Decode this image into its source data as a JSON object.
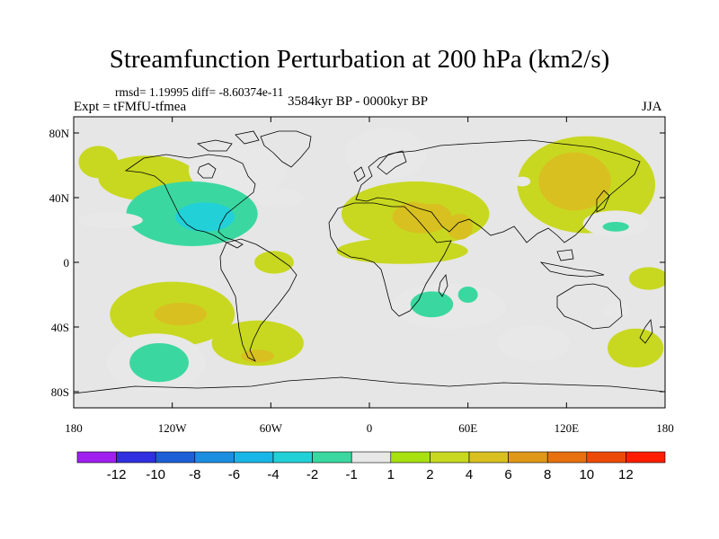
{
  "header": {
    "title": "Streamfunction Perturbation at 200 hPa (km2/s)",
    "stats": "rmsd= 1.19995  diff= -8.60374e-11",
    "experiment": "Expt = tFMfU-tfmea",
    "period": "3584kyr BP - 0000kyr BP",
    "season": "JJA"
  },
  "chart_data": {
    "type": "filled-contour-map",
    "title": "Streamfunction Perturbation at 200 hPa (km2/s)",
    "xlim": [
      -180,
      180
    ],
    "ylim": [
      -90,
      90
    ],
    "x_ticks": [
      {
        "value": -180,
        "label": "180"
      },
      {
        "value": -120,
        "label": "120W"
      },
      {
        "value": -60,
        "label": "60W"
      },
      {
        "value": 0,
        "label": "0"
      },
      {
        "value": 60,
        "label": "60E"
      },
      {
        "value": 120,
        "label": "120E"
      },
      {
        "value": 180,
        "label": "180"
      }
    ],
    "y_ticks": [
      {
        "value": 80,
        "label": "80N"
      },
      {
        "value": 40,
        "label": "40N"
      },
      {
        "value": 0,
        "label": "0"
      },
      {
        "value": -40,
        "label": "40S"
      },
      {
        "value": -80,
        "label": "80S"
      }
    ],
    "colorbar": {
      "labels": [
        "-12",
        "-10",
        "-8",
        "-6",
        "-4",
        "-2",
        "-1",
        "1",
        "2",
        "4",
        "6",
        "8",
        "10",
        "12"
      ],
      "colors": [
        "#a020f0",
        "#3030e0",
        "#1e5fd8",
        "#1b8ee0",
        "#18b6e8",
        "#22d0d8",
        "#3ad8a0",
        "#e8e8e8",
        "#a8e010",
        "#c8d820",
        "#d8c020",
        "#e09818",
        "#e87010",
        "#ec4a08",
        "#ff1e00"
      ]
    },
    "anomalies": [
      {
        "lon": -135,
        "lat": 52,
        "rx": 30,
        "ry": 14,
        "value": 2
      },
      {
        "lon": -80,
        "lat": 57,
        "rx": 30,
        "ry": 17,
        "value": -1
      },
      {
        "lon": -108,
        "lat": 30,
        "rx": 40,
        "ry": 20,
        "value": -2
      },
      {
        "lon": -100,
        "lat": 28,
        "rx": 18,
        "ry": 9,
        "value": -4
      },
      {
        "lon": -55,
        "lat": 40,
        "rx": 15,
        "ry": 6,
        "value": -1
      },
      {
        "lon": -158,
        "lat": 26,
        "rx": 20,
        "ry": 5,
        "value": -1
      },
      {
        "lon": -165,
        "lat": 62,
        "rx": 12,
        "ry": 10,
        "value": 2
      },
      {
        "lon": -120,
        "lat": -32,
        "rx": 38,
        "ry": 20,
        "value": 2
      },
      {
        "lon": -115,
        "lat": -32,
        "rx": 16,
        "ry": 7,
        "value": 4
      },
      {
        "lon": -68,
        "lat": -50,
        "rx": 28,
        "ry": 14,
        "value": 2
      },
      {
        "lon": -68,
        "lat": -58,
        "rx": 10,
        "ry": 4,
        "value": 4
      },
      {
        "lon": -130,
        "lat": -62,
        "rx": 30,
        "ry": 18,
        "value": -1
      },
      {
        "lon": -128,
        "lat": -62,
        "rx": 18,
        "ry": 12,
        "value": -2
      },
      {
        "lon": -58,
        "lat": 0,
        "rx": 12,
        "ry": 7,
        "value": 2
      },
      {
        "lon": 10,
        "lat": 67,
        "rx": 25,
        "ry": 16,
        "value": -1
      },
      {
        "lon": 28,
        "lat": 30,
        "rx": 45,
        "ry": 20,
        "value": 2
      },
      {
        "lon": 32,
        "lat": 28,
        "rx": 18,
        "ry": 10,
        "value": 4
      },
      {
        "lon": 55,
        "lat": 22,
        "rx": 8,
        "ry": 8,
        "value": 4
      },
      {
        "lon": 20,
        "lat": 7,
        "rx": 40,
        "ry": 8,
        "value": 2
      },
      {
        "lon": 48,
        "lat": -27,
        "rx": 35,
        "ry": 14,
        "value": -1
      },
      {
        "lon": 38,
        "lat": -26,
        "rx": 13,
        "ry": 8,
        "value": -2
      },
      {
        "lon": 38,
        "lat": 42,
        "rx": 16,
        "ry": 6,
        "value": 2
      },
      {
        "lon": 132,
        "lat": 48,
        "rx": 42,
        "ry": 30,
        "value": 2
      },
      {
        "lon": 125,
        "lat": 50,
        "rx": 22,
        "ry": 18,
        "value": 4
      },
      {
        "lon": 150,
        "lat": 24,
        "rx": 20,
        "ry": 8,
        "value": -1
      },
      {
        "lon": 150,
        "lat": 22,
        "rx": 8,
        "ry": 3,
        "value": -2
      },
      {
        "lon": 100,
        "lat": -50,
        "rx": 22,
        "ry": 11,
        "value": -1
      },
      {
        "lon": 162,
        "lat": -53,
        "rx": 17,
        "ry": 12,
        "value": 2
      },
      {
        "lon": 150,
        "lat": -30,
        "rx": 8,
        "ry": 5,
        "value": -1
      },
      {
        "lon": 170,
        "lat": -10,
        "rx": 12,
        "ry": 7,
        "value": 2
      },
      {
        "lon": 60,
        "lat": -20,
        "rx": 6,
        "ry": 5,
        "value": -2
      },
      {
        "lon": 93,
        "lat": 50,
        "rx": 5,
        "ry": 3,
        "value": -1
      }
    ]
  }
}
